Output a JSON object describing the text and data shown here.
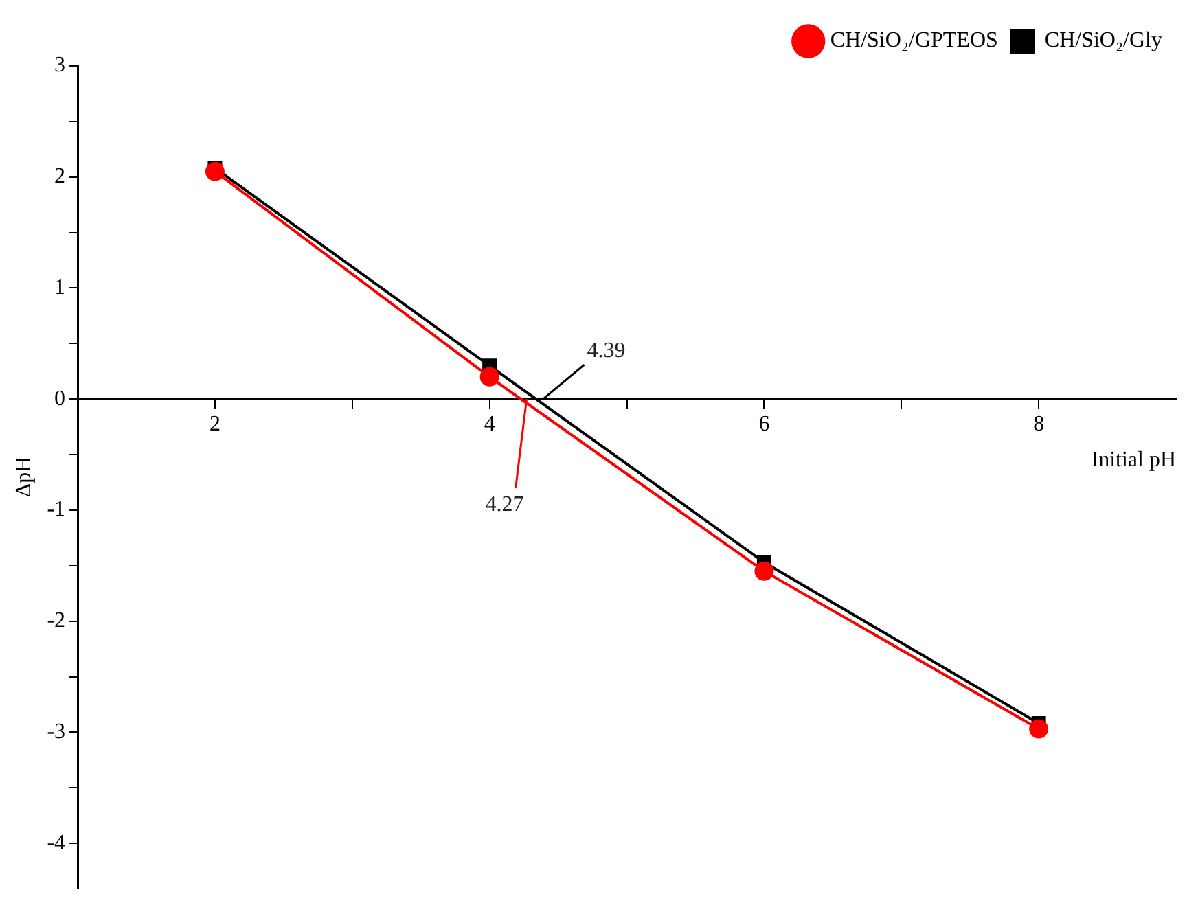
{
  "chart_data": {
    "type": "line",
    "xlabel": "Initial pH",
    "ylabel": "ΔpH",
    "x": [
      2,
      4,
      6,
      8
    ],
    "series": [
      {
        "name": "CH/SiO₂/Gly",
        "color": "#000000",
        "marker": "square",
        "values": [
          2.08,
          0.3,
          -1.47,
          -2.92
        ]
      },
      {
        "name": "CH/SiO₂/GPTEOS",
        "color": "#ff0000",
        "marker": "circle",
        "values": [
          2.05,
          0.2,
          -1.55,
          -2.97
        ]
      }
    ],
    "xlim": [
      1,
      9
    ],
    "xticks": [
      2,
      {
        "value": 3,
        "label": null
      },
      4,
      {
        "value": 5,
        "label": null
      },
      6,
      {
        "value": 7,
        "label": null
      },
      8
    ],
    "ylim": [
      -4.4,
      3
    ],
    "yticks": [
      -4,
      {
        "value": -3.5,
        "label": null
      },
      -3,
      {
        "value": -2.5,
        "label": null
      },
      -2,
      {
        "value": -1.5,
        "label": null
      },
      -1,
      {
        "value": -0.5,
        "label": null
      },
      0,
      {
        "value": 0.5,
        "label": null
      },
      1,
      {
        "value": 1.5,
        "label": null
      },
      2,
      {
        "value": 2.5,
        "label": null
      },
      3
    ],
    "annotations": [
      {
        "text": "4.39",
        "x": 4.39,
        "y": 0
      },
      {
        "text": "4.27",
        "x": 4.27,
        "y": 0
      }
    ],
    "legend": "top right",
    "grid": false,
    "line_style": "solid"
  }
}
